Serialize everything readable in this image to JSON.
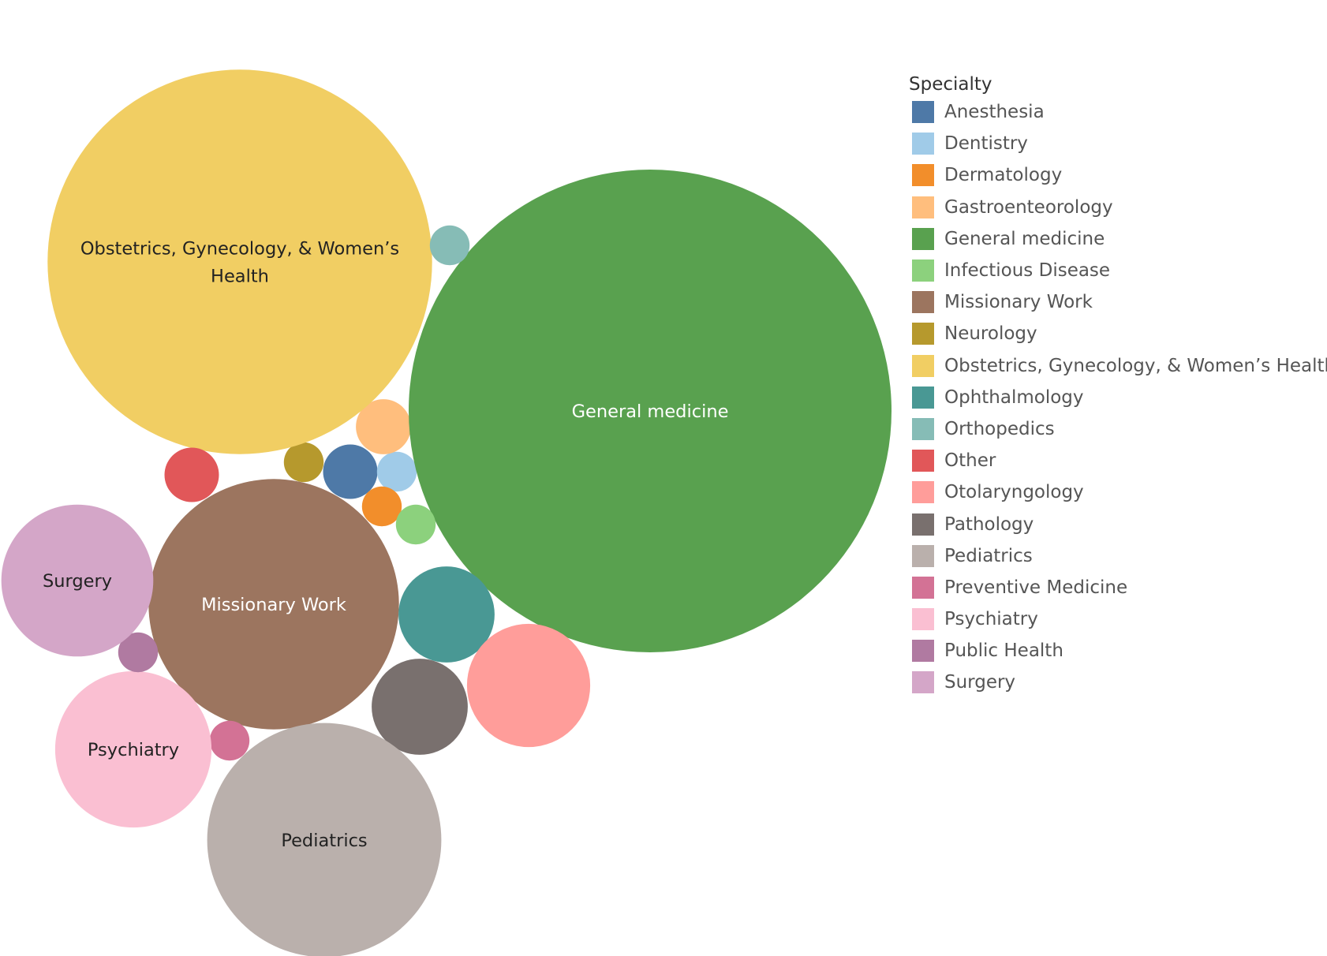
{
  "chart_data": {
    "type": "bubble",
    "legend": {
      "title": "Specialty",
      "position": "right"
    },
    "items": [
      {
        "name": "Anesthesia",
        "value": 45,
        "color": "#4E79A7",
        "label": ""
      },
      {
        "name": "Dentistry",
        "value": 24,
        "color": "#A0CBE8",
        "label": ""
      },
      {
        "name": "Dermatology",
        "value": 24,
        "color": "#F28E2B",
        "label": ""
      },
      {
        "name": "Gastroenteorology",
        "value": 46,
        "color": "#FFBE7D",
        "label": ""
      },
      {
        "name": "General medicine",
        "value": 3530,
        "color": "#59A14F",
        "label": "General medicine",
        "labelColor": "#ffffff"
      },
      {
        "name": "Infectious Disease",
        "value": 24,
        "color": "#8CD17D",
        "label": ""
      },
      {
        "name": "Missionary Work",
        "value": 950,
        "color": "#9C755F",
        "label": "Missionary Work",
        "labelColor": "#ffffff"
      },
      {
        "name": "Neurology",
        "value": 24,
        "color": "#B6992D",
        "label": ""
      },
      {
        "name": "Obstetrics, Gynecology, & Women’s Health",
        "value": 2240,
        "color": "#F1CE63",
        "label": "Obstetrics, Gynecology, & Women’s Health",
        "labelLines": [
          "Obstetrics, Gynecology, & Women’s",
          "Health"
        ],
        "labelColor": "#222222"
      },
      {
        "name": "Ophthalmology",
        "value": 140,
        "color": "#499894",
        "label": ""
      },
      {
        "name": "Orthopedics",
        "value": 24,
        "color": "#86BCB6",
        "label": ""
      },
      {
        "name": "Other",
        "value": 45,
        "color": "#E15759",
        "label": ""
      },
      {
        "name": "Otolaryngology",
        "value": 230,
        "color": "#FF9D9A",
        "label": ""
      },
      {
        "name": "Pathology",
        "value": 140,
        "color": "#79706E",
        "label": ""
      },
      {
        "name": "Pediatrics",
        "value": 830,
        "color": "#BAB0AC",
        "label": "Pediatrics",
        "labelColor": "#222222"
      },
      {
        "name": "Preventive Medicine",
        "value": 24,
        "color": "#D37295",
        "label": ""
      },
      {
        "name": "Psychiatry",
        "value": 370,
        "color": "#FABFD2",
        "label": "Psychiatry",
        "labelColor": "#222222"
      },
      {
        "name": "Public Health",
        "value": 24,
        "color": "#B07AA1",
        "label": ""
      },
      {
        "name": "Surgery",
        "value": 350,
        "color": "#D4A6C8",
        "label": "Surgery",
        "labelColor": "#222222"
      }
    ]
  }
}
